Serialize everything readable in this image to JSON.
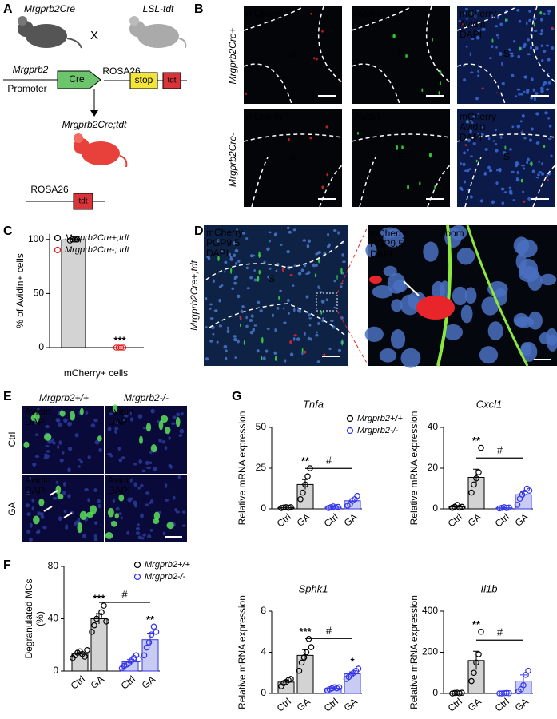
{
  "panel_labels": [
    "A",
    "B",
    "C",
    "D",
    "E",
    "F",
    "G"
  ],
  "panel_a": {
    "mouse1": "Mrgprb2Cre",
    "cross": "X",
    "mouse2": "LSL-tdt",
    "gene": "Mrgprb2",
    "promoter": "Promoter",
    "cre": "Cre",
    "rosa1": "ROSA26",
    "stop": "stop",
    "tdt1": "tdt",
    "offspring": "Mrgprb2Cre;tdt",
    "rosa2": "ROSA26",
    "tdt2": "tdt"
  },
  "panel_b": {
    "rows": [
      "Mrgprb2Cre+",
      "Mrgprb2Cre-"
    ],
    "channels": [
      "mCherry",
      "Avidin",
      "DAPI"
    ],
    "region": "S"
  },
  "panel_d": {
    "row": "Mrgprb2Cre+;tdt",
    "channels": [
      "mCherry",
      "PGP9.5",
      "DAPI"
    ],
    "region": "S",
    "zoom": "Zoom"
  },
  "panel_e": {
    "columns": [
      "Mrgprb2+/+",
      "Mrgprb2-/-"
    ],
    "rows": [
      "Ctrl",
      "GA"
    ],
    "channels": [
      "Avidin",
      "DAPI"
    ]
  },
  "chart_data": [
    {
      "type": "bar",
      "ylabel": [
        "% of Avidin+ cells"
      ],
      "xlabel": "mCherry+ cells",
      "ylim": [
        0,
        105
      ],
      "yticks": [
        0,
        50,
        100
      ],
      "series": [
        {
          "name": "Mrgprb2Cre+;tdt",
          "color": "#000000",
          "fill": "#d3d3d3",
          "values": [
            99.6
          ],
          "errors": [
            0.3
          ],
          "points": [
            [
              99,
              100,
              100,
              100
            ]
          ]
        },
        {
          "name": "Mrgprb2Cre-; tdt",
          "color": "#e02020",
          "values": [
            0
          ],
          "errors": [
            0
          ],
          "points": [
            [
              0,
              0,
              0,
              0
            ]
          ],
          "significance": [
            "***"
          ]
        }
      ]
    },
    {
      "type": "bar",
      "ylabel": [
        "Degranulated MCs",
        "(%)"
      ],
      "categories": [
        "Ctrl",
        "GA"
      ],
      "ylim": [
        0,
        80
      ],
      "yticks": [
        0,
        40,
        80
      ],
      "comparison": "#",
      "series": [
        {
          "name": "Mrgprb2+/+",
          "color": "#000000",
          "fill": "#d3d3d3",
          "values": [
            13,
            40
          ],
          "errors": [
            1.5,
            4
          ],
          "points": [
            [
              10,
              12,
              14,
              15,
              13,
              11,
              16
            ],
            [
              30,
              35,
              40,
              42,
              45,
              50,
              38
            ]
          ],
          "significance": [
            null,
            "***"
          ]
        },
        {
          "name": "Mrgprb2-/-",
          "color": "#3535e8",
          "fill": "#c8cbf2",
          "values": [
            7,
            24
          ],
          "errors": [
            1.8,
            5
          ],
          "points": [
            [
              2,
              4,
              5,
              6,
              8,
              10,
              12,
              9
            ],
            [
              12,
              18,
              22,
              28,
              34,
              30
            ]
          ],
          "significance": [
            null,
            "**"
          ]
        }
      ]
    },
    {
      "type": "bar",
      "title": "Tnfa",
      "ylabel": [
        "Relative mRNA expression"
      ],
      "categories": [
        "Ctrl",
        "GA"
      ],
      "ylim": [
        0,
        50
      ],
      "yticks": [
        0,
        25,
        50
      ],
      "comparison": "#",
      "series": [
        {
          "name": "Mrgprb2+/+",
          "color": "#000000",
          "fill": "#d3d3d3",
          "values": [
            0.8,
            15
          ],
          "errors": [
            0.2,
            3
          ],
          "points": [
            [
              0.5,
              0.8,
              1,
              0.7,
              1
            ],
            [
              6,
              10,
              15,
              20,
              25
            ]
          ],
          "significance": [
            null,
            "**"
          ]
        },
        {
          "name": "Mrgprb2-/-",
          "color": "#3535e8",
          "fill": "#c8cbf2",
          "values": [
            1,
            5
          ],
          "errors": [
            0.3,
            1.2
          ],
          "points": [
            [
              0.5,
              1,
              1.5,
              0.8,
              1.2
            ],
            [
              2,
              3,
              5,
              6,
              8
            ]
          ]
        }
      ]
    },
    {
      "type": "bar",
      "title": "Cxcl1",
      "ylabel": [
        "Relative mRNA expression"
      ],
      "categories": [
        "Ctrl",
        "GA"
      ],
      "ylim": [
        0,
        40
      ],
      "yticks": [
        0,
        20,
        40
      ],
      "comparison": "#",
      "series": [
        {
          "color": "#000000",
          "fill": "#d3d3d3",
          "values": [
            1,
            15.5
          ],
          "errors": [
            0.4,
            4
          ],
          "points": [
            [
              0.5,
              1,
              2,
              0.6,
              1
            ],
            [
              8,
              12,
              15,
              18,
              30
            ]
          ],
          "significance": [
            null,
            "**"
          ]
        },
        {
          "color": "#3535e8",
          "fill": "#c8cbf2",
          "values": [
            0.5,
            7
          ],
          "errors": [
            0.2,
            1.5
          ],
          "points": [
            [
              0.2,
              0.5,
              0.8,
              0.4,
              0.6
            ],
            [
              2,
              5,
              7,
              8,
              10,
              9
            ]
          ]
        }
      ]
    },
    {
      "type": "bar",
      "title": "Sphk1",
      "ylabel": [
        "Relative mRNA expression"
      ],
      "categories": [
        "Ctrl",
        "GA"
      ],
      "ylim": [
        0,
        8
      ],
      "yticks": [
        0,
        4,
        8
      ],
      "comparison": "#",
      "series": [
        {
          "color": "#000000",
          "fill": "#d3d3d3",
          "values": [
            1.1,
            3.7
          ],
          "errors": [
            0.15,
            0.55
          ],
          "points": [
            [
              0.7,
              1,
              1.1,
              1.3,
              1.4
            ],
            [
              2.2,
              3,
              3.5,
              4,
              5.3,
              4.5
            ]
          ],
          "significance": [
            null,
            "***"
          ]
        },
        {
          "color": "#3535e8",
          "fill": "#c8cbf2",
          "values": [
            0.5,
            1.9
          ],
          "errors": [
            0.1,
            0.2
          ],
          "points": [
            [
              0.3,
              0.4,
              0.5,
              0.6,
              0.5,
              0.6
            ],
            [
              1.4,
              1.6,
              1.8,
              2,
              2.2,
              2.4
            ]
          ],
          "significance": [
            null,
            "*"
          ]
        }
      ]
    },
    {
      "type": "bar",
      "title": "Il1b",
      "ylabel": [
        "Relative mRNA expression"
      ],
      "categories": [
        "Ctrl",
        "GA"
      ],
      "ylim": [
        0,
        400
      ],
      "yticks": [
        0,
        200,
        400
      ],
      "comparison": "#",
      "series": [
        {
          "color": "#000000",
          "fill": "#d3d3d3",
          "values": [
            2,
            160
          ],
          "errors": [
            1,
            45
          ],
          "points": [
            [
              0,
              2,
              3,
              1,
              3
            ],
            [
              60,
              100,
              150,
              190,
              300
            ]
          ],
          "significance": [
            null,
            "**"
          ]
        },
        {
          "color": "#3535e8",
          "fill": "#c8cbf2",
          "values": [
            1,
            60
          ],
          "errors": [
            0.5,
            30
          ],
          "points": [
            [
              0,
              0,
              1,
              2,
              1
            ],
            [
              10,
              20,
              40,
              90,
              110
            ]
          ]
        }
      ]
    }
  ]
}
